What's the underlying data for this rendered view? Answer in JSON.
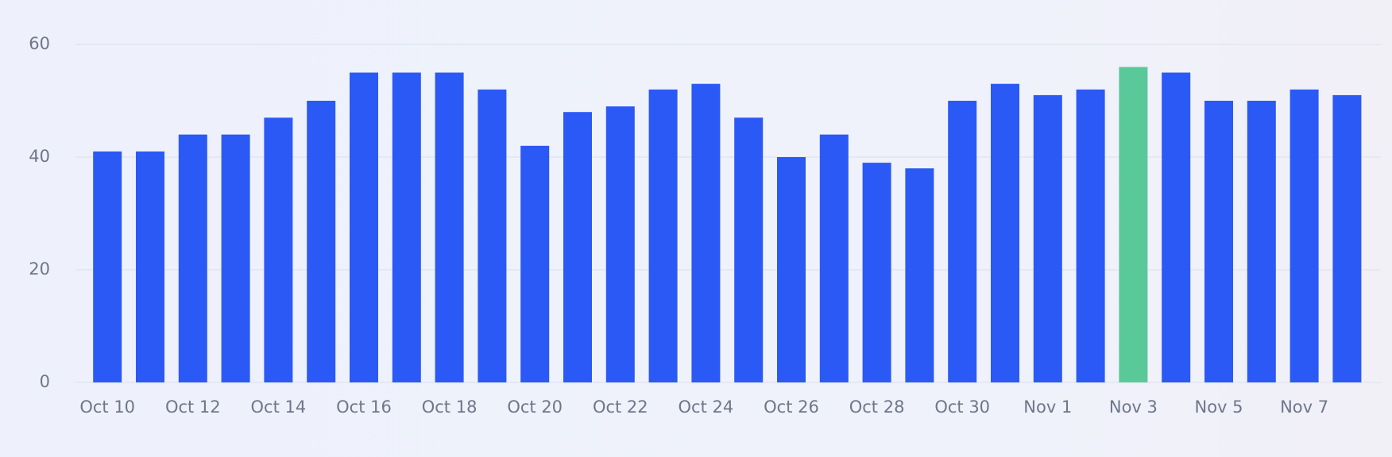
{
  "chart_data": {
    "type": "bar",
    "categories": [
      "Oct 10",
      null,
      "Oct 12",
      null,
      "Oct 14",
      null,
      "Oct 16",
      null,
      "Oct 18",
      null,
      "Oct 20",
      null,
      "Oct 22",
      null,
      "Oct 24",
      null,
      "Oct 26",
      null,
      "Oct 28",
      null,
      "Oct 30",
      null,
      "Nov 1",
      null,
      "Nov 3",
      null,
      "Nov 5",
      null,
      "Nov 7",
      null
    ],
    "values": [
      41,
      41,
      44,
      44,
      47,
      50,
      55,
      55,
      55,
      52,
      42,
      48,
      49,
      52,
      53,
      47,
      40,
      44,
      39,
      38,
      50,
      53,
      51,
      52,
      56,
      55,
      50,
      50,
      52,
      51
    ],
    "colors": [
      "#2b59f5",
      "#2b59f5",
      "#2b59f5",
      "#2b59f5",
      "#2b59f5",
      "#2b59f5",
      "#2b59f5",
      "#2b59f5",
      "#2b59f5",
      "#2b59f5",
      "#2b59f5",
      "#2b59f5",
      "#2b59f5",
      "#2b59f5",
      "#2b59f5",
      "#2b59f5",
      "#2b59f5",
      "#2b59f5",
      "#2b59f5",
      "#2b59f5",
      "#2b59f5",
      "#2b59f5",
      "#2b59f5",
      "#2b59f5",
      "#5ac99a",
      "#2b59f5",
      "#2b59f5",
      "#2b59f5",
      "#2b59f5",
      "#2b59f5"
    ],
    "ylim": [
      0,
      60
    ],
    "yticks": [
      0,
      20,
      40,
      60
    ],
    "grid": true
  }
}
